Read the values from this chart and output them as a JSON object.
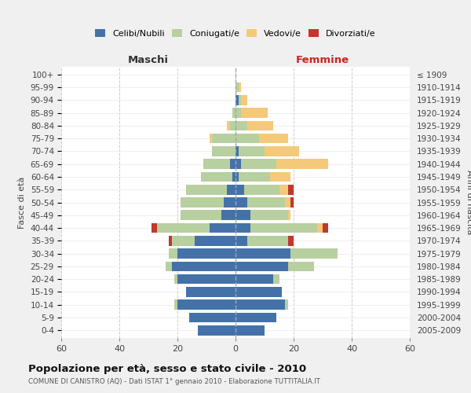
{
  "age_groups": [
    "0-4",
    "5-9",
    "10-14",
    "15-19",
    "20-24",
    "25-29",
    "30-34",
    "35-39",
    "40-44",
    "45-49",
    "50-54",
    "55-59",
    "60-64",
    "65-69",
    "70-74",
    "75-79",
    "80-84",
    "85-89",
    "90-94",
    "95-99",
    "100+"
  ],
  "birth_years": [
    "2005-2009",
    "2000-2004",
    "1995-1999",
    "1990-1994",
    "1985-1989",
    "1980-1984",
    "1975-1979",
    "1970-1974",
    "1965-1969",
    "1960-1964",
    "1955-1959",
    "1950-1954",
    "1945-1949",
    "1940-1944",
    "1935-1939",
    "1930-1934",
    "1925-1929",
    "1920-1924",
    "1915-1919",
    "1910-1914",
    "≤ 1909"
  ],
  "male": {
    "celibi": [
      13,
      16,
      20,
      17,
      20,
      22,
      20,
      14,
      9,
      5,
      4,
      3,
      1,
      2,
      0,
      0,
      0,
      0,
      0,
      0,
      0
    ],
    "coniugati": [
      0,
      0,
      1,
      0,
      1,
      2,
      3,
      8,
      18,
      14,
      15,
      14,
      11,
      9,
      8,
      8,
      2,
      1,
      0,
      0,
      0
    ],
    "vedovi": [
      0,
      0,
      0,
      0,
      0,
      0,
      0,
      0,
      0,
      0,
      0,
      0,
      0,
      0,
      0,
      1,
      1,
      0,
      0,
      0,
      0
    ],
    "divorziati": [
      0,
      0,
      0,
      0,
      0,
      0,
      0,
      1,
      2,
      0,
      0,
      0,
      0,
      0,
      0,
      0,
      0,
      0,
      0,
      0,
      0
    ]
  },
  "female": {
    "nubili": [
      10,
      14,
      17,
      16,
      13,
      18,
      19,
      4,
      5,
      5,
      4,
      3,
      1,
      2,
      1,
      0,
      0,
      0,
      1,
      0,
      0
    ],
    "coniugate": [
      0,
      0,
      1,
      0,
      2,
      9,
      16,
      14,
      23,
      13,
      13,
      12,
      11,
      12,
      9,
      8,
      4,
      2,
      1,
      1,
      0
    ],
    "vedove": [
      0,
      0,
      0,
      0,
      0,
      0,
      0,
      0,
      2,
      1,
      2,
      3,
      7,
      18,
      12,
      10,
      9,
      9,
      2,
      1,
      0
    ],
    "divorziate": [
      0,
      0,
      0,
      0,
      0,
      0,
      0,
      2,
      2,
      0,
      1,
      2,
      0,
      0,
      0,
      0,
      0,
      0,
      0,
      0,
      0
    ]
  },
  "colors": {
    "celibi": "#4472a8",
    "coniugati": "#b8cfa0",
    "vedovi": "#f5c97a",
    "divorziati": "#c0392b"
  },
  "xlim": 60,
  "title": "Popolazione per età, sesso e stato civile - 2010",
  "subtitle": "COMUNE DI CANISTRO (AQ) - Dati ISTAT 1° gennaio 2010 - Elaborazione TUTTITALIA.IT",
  "xlabel_left": "Maschi",
  "xlabel_right": "Femmine",
  "ylabel_left": "Fasce di età",
  "ylabel_right": "Anni di nascita",
  "legend_labels": [
    "Celibi/Nubili",
    "Coniugati/e",
    "Vedovi/e",
    "Divorziati/e"
  ],
  "bg_color": "#f0f0f0",
  "plot_bg_color": "#ffffff"
}
